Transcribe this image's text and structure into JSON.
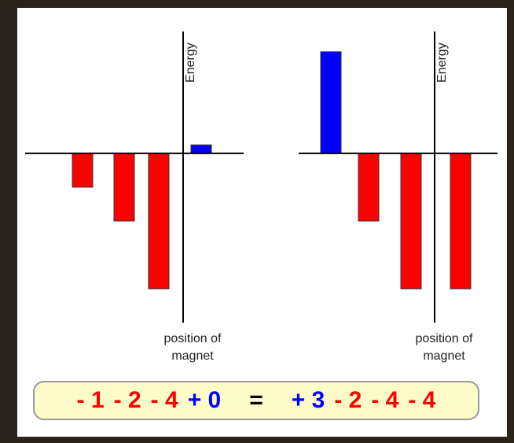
{
  "chart_data": [
    {
      "type": "bar",
      "y_label": "Energy",
      "x_label": [
        "position of",
        "magnet"
      ],
      "values": [
        -1,
        -2,
        -4,
        0.25
      ],
      "colors": [
        "#ff0000",
        "#ff0000",
        "#ff0000",
        "#0000ff"
      ],
      "ylim": [
        -5,
        3.6
      ]
    },
    {
      "type": "bar",
      "y_label": "Energy",
      "x_label": [
        "position of",
        "magnet"
      ],
      "values": [
        3,
        -2,
        -4,
        -4
      ],
      "colors": [
        "#0000ff",
        "#ff0000",
        "#ff0000",
        "#ff0000"
      ],
      "ylim": [
        -5,
        3.6
      ]
    }
  ],
  "equation": [
    {
      "text": "- 1",
      "color": "#ff0000"
    },
    {
      "text": "- 2",
      "color": "#ff0000"
    },
    {
      "text": "- 4",
      "color": "#ff0000"
    },
    {
      "text": "+ 0",
      "color": "#0000ff"
    },
    {
      "text": "=",
      "color": "#000000"
    },
    {
      "text": "+ 3",
      "color": "#0000ff"
    },
    {
      "text": "- 2",
      "color": "#ff0000"
    },
    {
      "text": "- 4",
      "color": "#ff0000"
    },
    {
      "text": "- 4",
      "color": "#ff0000"
    }
  ]
}
